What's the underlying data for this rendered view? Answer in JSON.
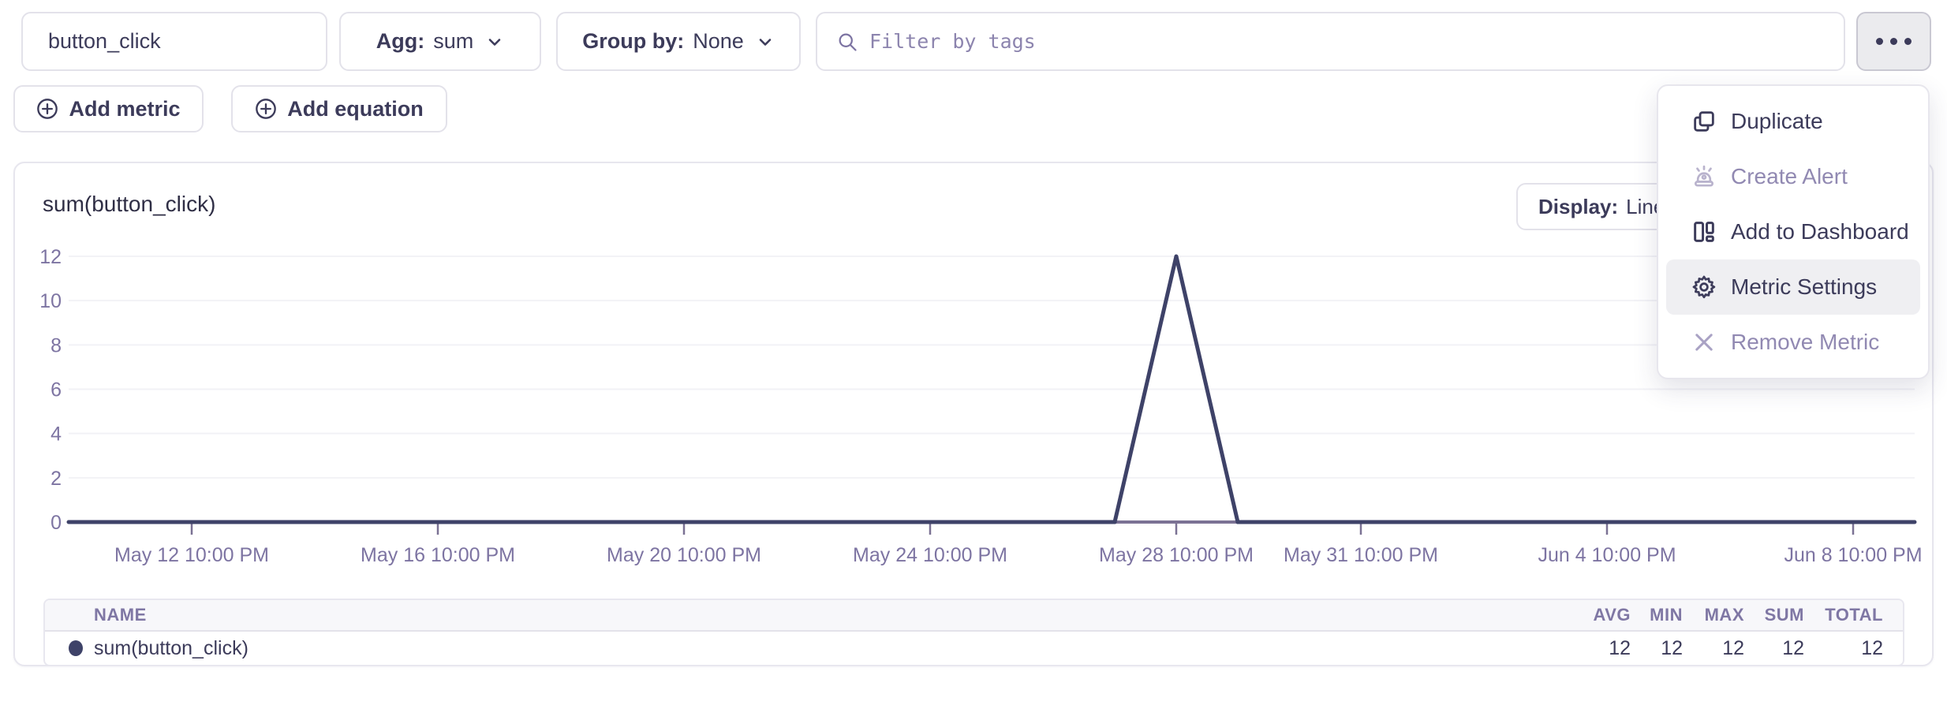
{
  "toolbar": {
    "metric_input": {
      "value": "button_click"
    },
    "agg": {
      "label": "Agg:",
      "value": "sum"
    },
    "group_by": {
      "label": "Group by:",
      "value": "None"
    },
    "filter": {
      "placeholder": "Filter by tags"
    },
    "more_button": {
      "icon": "ellipsis-icon"
    }
  },
  "actions": {
    "add_metric_label": "Add metric",
    "add_equation_label": "Add equation"
  },
  "menu": {
    "items": [
      {
        "label": "Duplicate",
        "icon": "duplicate-icon",
        "disabled": false,
        "highlighted": false
      },
      {
        "label": "Create Alert",
        "icon": "alert-icon",
        "disabled": true,
        "highlighted": false
      },
      {
        "label": "Add to Dashboard",
        "icon": "dashboard-icon",
        "disabled": false,
        "highlighted": false
      },
      {
        "label": "Metric Settings",
        "icon": "gear-icon",
        "disabled": false,
        "highlighted": true
      },
      {
        "label": "Remove Metric",
        "icon": "remove-icon",
        "disabled": true,
        "highlighted": false
      }
    ]
  },
  "chart_panel": {
    "title": "sum(button_click)",
    "display": {
      "label": "Display:",
      "value": "Line"
    }
  },
  "chart_data": {
    "type": "line",
    "title": "sum(button_click)",
    "ylim": [
      0,
      12
    ],
    "y_ticks": [
      0,
      2,
      4,
      6,
      8,
      10,
      12
    ],
    "x_tick_labels": [
      "May 12 10:00 PM",
      "May 16 10:00 PM",
      "May 20 10:00 PM",
      "May 24 10:00 PM",
      "May 28 10:00 PM",
      "May 31 10:00 PM",
      "Jun 4 10:00 PM",
      "Jun 8 10:00 PM"
    ],
    "x_tick_days": [
      2,
      6,
      10,
      14,
      18,
      21,
      25,
      29
    ],
    "x_range_days": [
      0,
      30
    ],
    "grid": true,
    "legend_position": "table-below",
    "series": [
      {
        "name": "sum(button_click)",
        "color": "#3e4268",
        "points_day_value": [
          [
            0,
            0
          ],
          [
            17,
            0
          ],
          [
            18,
            12
          ],
          [
            19,
            0
          ],
          [
            30,
            0
          ]
        ],
        "peak": {
          "x_label": "May 28 10:00 PM",
          "y": 12
        }
      }
    ]
  },
  "summary_table": {
    "columns": [
      "NAME",
      "AVG",
      "MIN",
      "MAX",
      "SUM",
      "TOTAL"
    ],
    "rows": [
      {
        "name": "sum(button_click)",
        "color": "#3e4268",
        "avg": "12",
        "min": "12",
        "max": "12",
        "sum": "12",
        "total": "12"
      }
    ]
  },
  "colors": {
    "line": "#3e4268",
    "axis": "#7b7294",
    "axis_label": "#7d74a2",
    "grid": "#f2f2f6",
    "text_dark": "#3c3b5a",
    "text_disabled": "#9189b2",
    "menu_highlight": "#efeff2",
    "border": "#e3e2ea"
  }
}
